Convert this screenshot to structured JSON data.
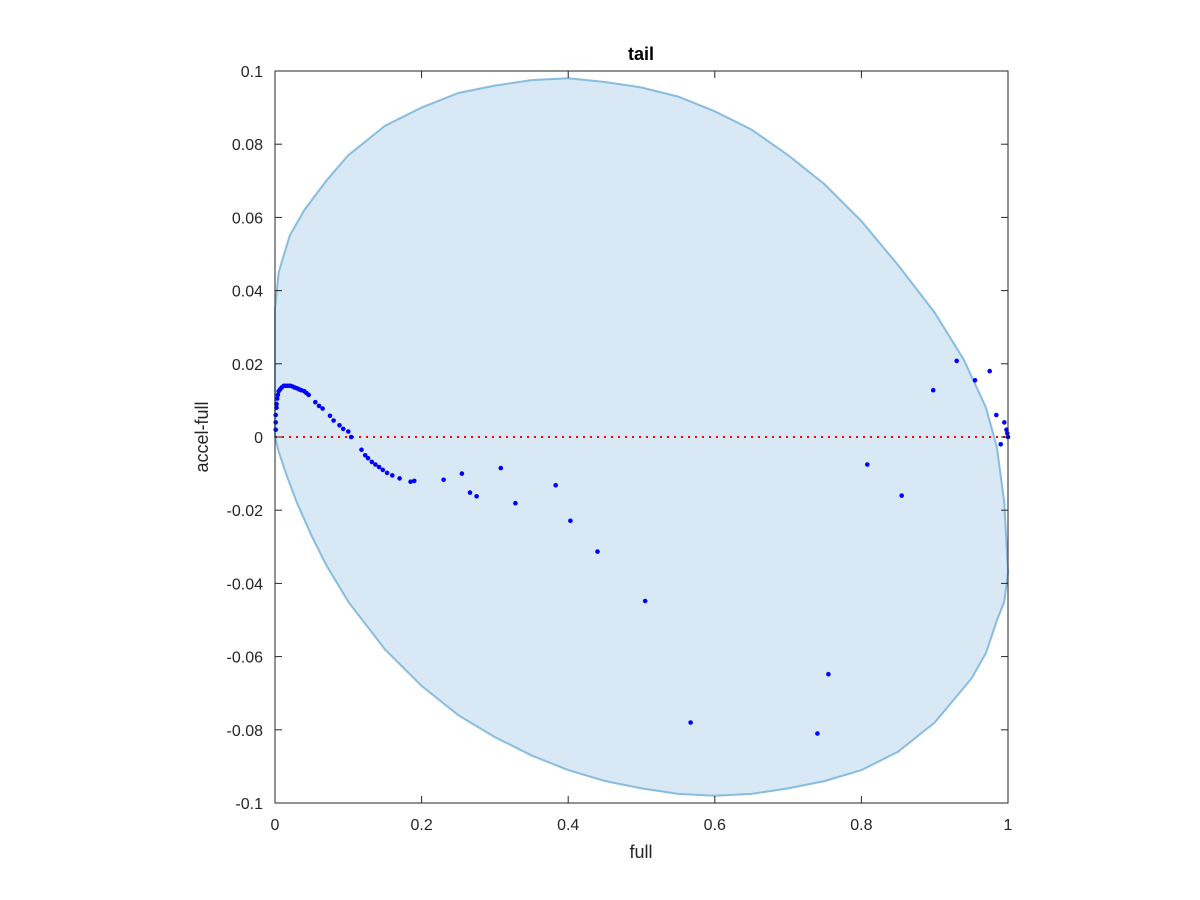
{
  "chart_data": {
    "type": "scatter",
    "title": "tail",
    "xlabel": "full",
    "ylabel": "accel-full",
    "xlim": [
      0,
      1
    ],
    "ylim": [
      -0.1,
      0.1
    ],
    "x_ticks": [
      0,
      0.2,
      0.4,
      0.6,
      0.8,
      1
    ],
    "x_tick_labels": [
      "0",
      "0.2",
      "0.4",
      "0.6",
      "0.8",
      "1"
    ],
    "y_ticks": [
      -0.1,
      -0.08,
      -0.06,
      -0.04,
      -0.02,
      0,
      0.02,
      0.04,
      0.06,
      0.08,
      0.1
    ],
    "y_tick_labels": [
      "-0.1",
      "-0.08",
      "-0.06",
      "-0.04",
      "-0.02",
      "0",
      "0.02",
      "0.04",
      "0.06",
      "0.08",
      "0.1"
    ],
    "grid": false,
    "legend": "none",
    "colors": {
      "points": "#0000ff",
      "region_fill": "#d8e8f4",
      "region_edge": "#88bde0",
      "zero_line": "#ff0000"
    },
    "reference_line": {
      "y": 0,
      "style": "dotted",
      "color": "#ff0000"
    },
    "region_boundary": [
      [
        0,
        0.035
      ],
      [
        0.005,
        0.045
      ],
      [
        0.02,
        0.055
      ],
      [
        0.04,
        0.062
      ],
      [
        0.07,
        0.07
      ],
      [
        0.1,
        0.077
      ],
      [
        0.15,
        0.085
      ],
      [
        0.2,
        0.09
      ],
      [
        0.25,
        0.094
      ],
      [
        0.3,
        0.096
      ],
      [
        0.35,
        0.0975
      ],
      [
        0.4,
        0.098
      ],
      [
        0.45,
        0.097
      ],
      [
        0.5,
        0.0955
      ],
      [
        0.55,
        0.093
      ],
      [
        0.6,
        0.089
      ],
      [
        0.65,
        0.084
      ],
      [
        0.7,
        0.077
      ],
      [
        0.75,
        0.069
      ],
      [
        0.8,
        0.059
      ],
      [
        0.85,
        0.047
      ],
      [
        0.9,
        0.034
      ],
      [
        0.94,
        0.021
      ],
      [
        0.97,
        0.008
      ],
      [
        0.985,
        -0.003
      ],
      [
        0.995,
        -0.018
      ],
      [
        1,
        -0.037
      ],
      [
        0.995,
        -0.045
      ],
      [
        0.985,
        -0.05
      ],
      [
        0.97,
        -0.059
      ],
      [
        0.95,
        -0.066
      ],
      [
        0.9,
        -0.078
      ],
      [
        0.85,
        -0.086
      ],
      [
        0.8,
        -0.091
      ],
      [
        0.75,
        -0.094
      ],
      [
        0.7,
        -0.096
      ],
      [
        0.65,
        -0.0975
      ],
      [
        0.6,
        -0.098
      ],
      [
        0.55,
        -0.0975
      ],
      [
        0.5,
        -0.096
      ],
      [
        0.45,
        -0.094
      ],
      [
        0.4,
        -0.091
      ],
      [
        0.35,
        -0.087
      ],
      [
        0.3,
        -0.082
      ],
      [
        0.25,
        -0.076
      ],
      [
        0.2,
        -0.068
      ],
      [
        0.15,
        -0.058
      ],
      [
        0.1,
        -0.045
      ],
      [
        0.07,
        -0.035
      ],
      [
        0.05,
        -0.027
      ],
      [
        0.03,
        -0.018
      ],
      [
        0.015,
        -0.01
      ],
      [
        0.005,
        -0.004
      ],
      [
        0,
        0
      ]
    ],
    "points": [
      [
        0.001,
        0.002
      ],
      [
        0.001,
        0.004
      ],
      [
        0.001,
        0.006
      ],
      [
        0.002,
        0.008
      ],
      [
        0.002,
        0.009
      ],
      [
        0.003,
        0.0105
      ],
      [
        0.004,
        0.0115
      ],
      [
        0.005,
        0.0125
      ],
      [
        0.007,
        0.013
      ],
      [
        0.009,
        0.0135
      ],
      [
        0.012,
        0.014
      ],
      [
        0.015,
        0.014
      ],
      [
        0.018,
        0.014
      ],
      [
        0.021,
        0.014
      ],
      [
        0.024,
        0.0138
      ],
      [
        0.027,
        0.0135
      ],
      [
        0.03,
        0.0133
      ],
      [
        0.033,
        0.013
      ],
      [
        0.036,
        0.0128
      ],
      [
        0.04,
        0.0125
      ],
      [
        0.043,
        0.012
      ],
      [
        0.046,
        0.0115
      ],
      [
        0.055,
        0.0095
      ],
      [
        0.06,
        0.0085
      ],
      [
        0.065,
        0.0078
      ],
      [
        0.075,
        0.0058
      ],
      [
        0.08,
        0.0045
      ],
      [
        0.088,
        0.0032
      ],
      [
        0.093,
        0.0022
      ],
      [
        0.1,
        0.0015
      ],
      [
        0.104,
        0.0
      ],
      [
        0.118,
        -0.0035
      ],
      [
        0.123,
        -0.005
      ],
      [
        0.127,
        -0.0058
      ],
      [
        0.132,
        -0.0068
      ],
      [
        0.137,
        -0.0075
      ],
      [
        0.142,
        -0.0082
      ],
      [
        0.147,
        -0.009
      ],
      [
        0.153,
        -0.0098
      ],
      [
        0.16,
        -0.0105
      ],
      [
        0.17,
        -0.0113
      ],
      [
        0.185,
        -0.0122
      ],
      [
        0.19,
        -0.012
      ],
      [
        0.23,
        -0.0117
      ],
      [
        0.255,
        -0.01
      ],
      [
        0.266,
        -0.0152
      ],
      [
        0.275,
        -0.0162
      ],
      [
        0.308,
        -0.0085
      ],
      [
        0.328,
        -0.0181
      ],
      [
        0.383,
        -0.0132
      ],
      [
        0.403,
        -0.0229
      ],
      [
        0.44,
        -0.0313
      ],
      [
        0.505,
        -0.0448
      ],
      [
        0.567,
        -0.078
      ],
      [
        0.74,
        -0.081
      ],
      [
        0.755,
        -0.0648
      ],
      [
        0.808,
        -0.0075
      ],
      [
        0.855,
        -0.016
      ],
      [
        0.898,
        0.0128
      ],
      [
        0.93,
        0.0208
      ],
      [
        0.955,
        0.0155
      ],
      [
        0.975,
        0.018
      ],
      [
        0.984,
        0.006
      ],
      [
        0.99,
        -0.002
      ],
      [
        0.995,
        0.004
      ],
      [
        0.998,
        0.002
      ],
      [
        0.999,
        0.001
      ],
      [
        1.0,
        0.0
      ]
    ]
  }
}
